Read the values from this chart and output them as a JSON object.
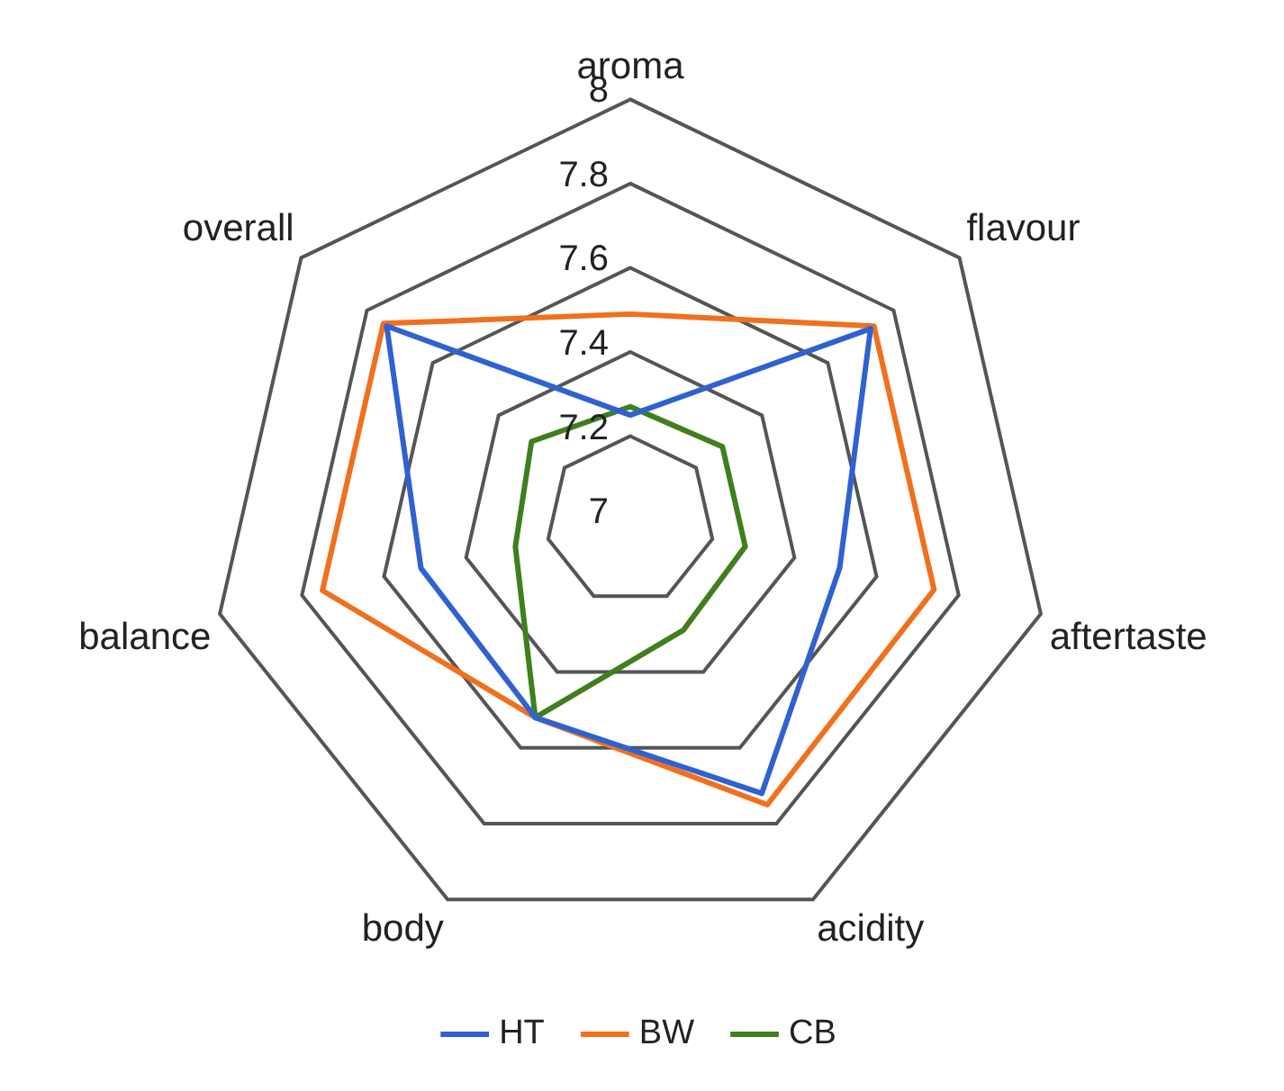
{
  "chart_data": {
    "type": "radar",
    "categories": [
      "aroma",
      "flavour",
      "aftertaste",
      "acidity",
      "body",
      "balance",
      "overall"
    ],
    "ylim": [
      7,
      8
    ],
    "yticks": [
      7,
      7.2,
      7.4,
      7.6,
      7.8,
      8
    ],
    "grid": true,
    "legend": "bottom",
    "marker": "none",
    "series": [
      {
        "name": "HT",
        "color": "#2f62d0",
        "values": [
          7.25,
          7.73,
          7.51,
          7.72,
          7.52,
          7.51,
          7.74
        ]
      },
      {
        "name": "BW",
        "color": "#f0701e",
        "values": [
          7.49,
          7.74,
          7.74,
          7.75,
          7.52,
          7.75,
          7.75
        ]
      },
      {
        "name": "CB",
        "color": "#3f7f1e",
        "values": [
          7.27,
          7.28,
          7.28,
          7.29,
          7.52,
          7.28,
          7.3
        ]
      }
    ]
  }
}
